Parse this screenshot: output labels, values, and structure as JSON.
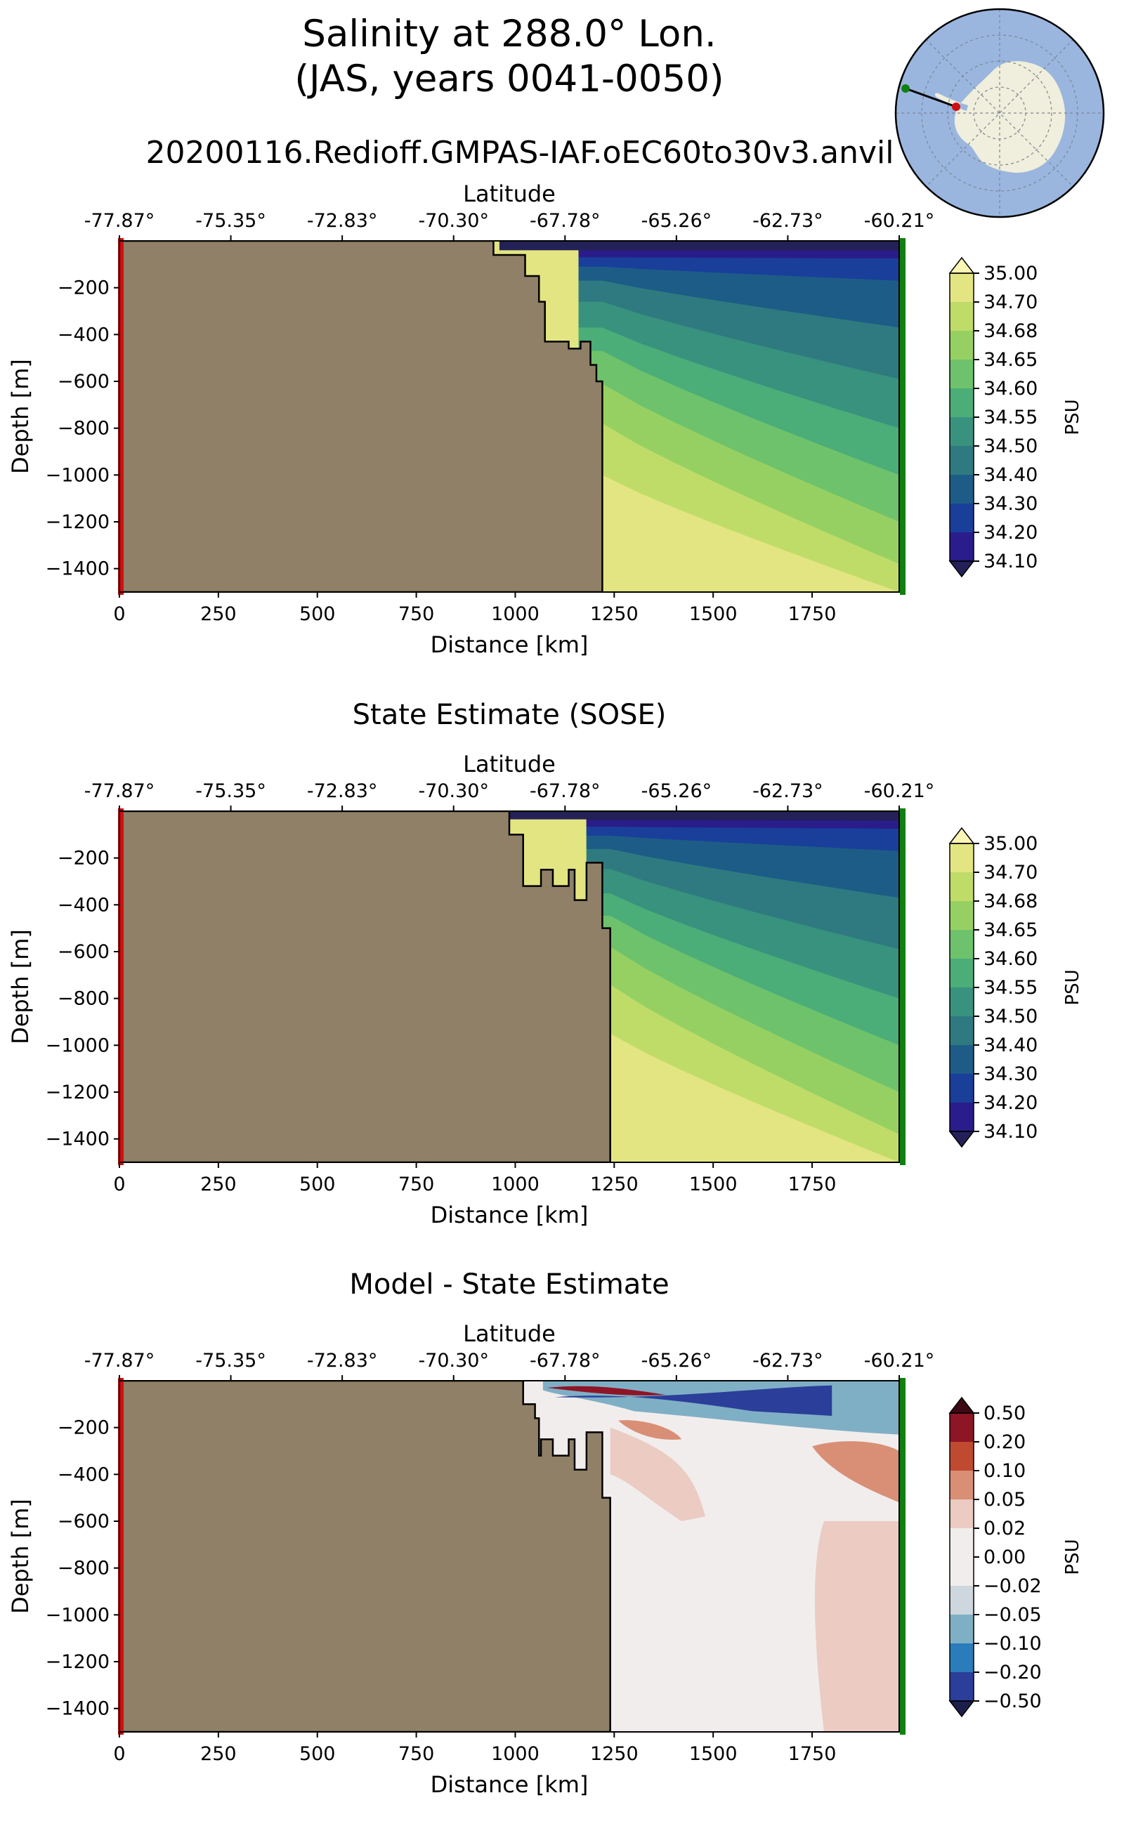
{
  "figure": {
    "title_line1": "Salinity at 288.0° Lon.",
    "title_line2": "(JAS, years 0041-0050)",
    "run_name": "20200116.Redioff.GMPAS-IAF.oEC60to30v3.anvil"
  },
  "colors": {
    "land": "#8f8067",
    "background": "#ffffff",
    "start_marker": "#d01010",
    "end_marker": "#108010",
    "inset_ocean": "#9ab6df",
    "inset_land": "#f0eedc"
  },
  "chart_data": [
    {
      "type": "heatmap",
      "name": "model",
      "title": "",
      "xlabel": "Distance [km]",
      "ylabel": "Depth [m]",
      "top_axis_label": "Latitude",
      "xlim": [
        0,
        1970
      ],
      "ylim": [
        -1500,
        0
      ],
      "x_ticks": [
        "0",
        "250",
        "500",
        "750",
        "1000",
        "1250",
        "1500",
        "1750"
      ],
      "y_ticks": [
        "−200",
        "−400",
        "−600",
        "−800",
        "−1000",
        "−1200",
        "−1400"
      ],
      "latitude_ticks": [
        "-77.87°",
        "-75.35°",
        "-72.83°",
        "-70.30°",
        "-67.78°",
        "-65.26°",
        "-62.73°",
        "-60.21°"
      ],
      "colorbar": {
        "label": "PSU",
        "levels": [
          "35.00",
          "34.70",
          "34.68",
          "34.65",
          "34.60",
          "34.55",
          "34.50",
          "34.40",
          "34.30",
          "34.20",
          "34.10"
        ],
        "colors": [
          "#fbf6b4",
          "#e3e582",
          "#c0dc68",
          "#97d062",
          "#6ec26c",
          "#4bad78",
          "#38927e",
          "#2e7a80",
          "#1d5c87",
          "#193f9a",
          "#2a1c8a",
          "#232157"
        ]
      },
      "bathymetry": [
        [
          0,
          0
        ],
        [
          945,
          0
        ],
        [
          945,
          -60
        ],
        [
          1025,
          -60
        ],
        [
          1025,
          -150
        ],
        [
          1060,
          -150
        ],
        [
          1060,
          -260
        ],
        [
          1075,
          -260
        ],
        [
          1075,
          -430
        ],
        [
          1135,
          -430
        ],
        [
          1135,
          -460
        ],
        [
          1165,
          -460
        ],
        [
          1165,
          -430
        ],
        [
          1190,
          -430
        ],
        [
          1190,
          -530
        ],
        [
          1205,
          -530
        ],
        [
          1205,
          -600
        ],
        [
          1220,
          -600
        ],
        [
          1220,
          -1500
        ]
      ],
      "shelf_break_km": 1220
    },
    {
      "type": "heatmap",
      "name": "sose",
      "title": "State Estimate (SOSE)",
      "xlabel": "Distance [km]",
      "ylabel": "Depth [m]",
      "top_axis_label": "Latitude",
      "xlim": [
        0,
        1970
      ],
      "ylim": [
        -1500,
        0
      ],
      "x_ticks": [
        "0",
        "250",
        "500",
        "750",
        "1000",
        "1250",
        "1500",
        "1750"
      ],
      "y_ticks": [
        "−200",
        "−400",
        "−600",
        "−800",
        "−1000",
        "−1200",
        "−1400"
      ],
      "latitude_ticks": [
        "-77.87°",
        "-75.35°",
        "-72.83°",
        "-70.30°",
        "-67.78°",
        "-65.26°",
        "-62.73°",
        "-60.21°"
      ],
      "colorbar": {
        "label": "PSU",
        "levels": [
          "35.00",
          "34.70",
          "34.68",
          "34.65",
          "34.60",
          "34.55",
          "34.50",
          "34.40",
          "34.30",
          "34.20",
          "34.10"
        ],
        "colors": [
          "#fbf6b4",
          "#e3e582",
          "#c0dc68",
          "#97d062",
          "#6ec26c",
          "#4bad78",
          "#38927e",
          "#2e7a80",
          "#1d5c87",
          "#193f9a",
          "#2a1c8a",
          "#232157"
        ]
      },
      "bathymetry": [
        [
          0,
          0
        ],
        [
          985,
          0
        ],
        [
          985,
          -100
        ],
        [
          1020,
          -100
        ],
        [
          1020,
          -320
        ],
        [
          1065,
          -320
        ],
        [
          1065,
          -250
        ],
        [
          1095,
          -250
        ],
        [
          1095,
          -320
        ],
        [
          1135,
          -320
        ],
        [
          1135,
          -250
        ],
        [
          1150,
          -250
        ],
        [
          1150,
          -380
        ],
        [
          1180,
          -380
        ],
        [
          1180,
          -220
        ],
        [
          1220,
          -220
        ],
        [
          1220,
          -500
        ],
        [
          1240,
          -500
        ],
        [
          1240,
          -1500
        ]
      ],
      "shelf_break_km": 1240
    },
    {
      "type": "heatmap",
      "name": "difference",
      "title": "Model - State Estimate",
      "xlabel": "Distance [km]",
      "ylabel": "Depth [m]",
      "top_axis_label": "Latitude",
      "xlim": [
        0,
        1970
      ],
      "ylim": [
        -1500,
        0
      ],
      "x_ticks": [
        "0",
        "250",
        "500",
        "750",
        "1000",
        "1250",
        "1500",
        "1750"
      ],
      "y_ticks": [
        "−200",
        "−400",
        "−600",
        "−800",
        "−1000",
        "−1200",
        "−1400"
      ],
      "latitude_ticks": [
        "-77.87°",
        "-75.35°",
        "-72.83°",
        "-70.30°",
        "-67.78°",
        "-65.26°",
        "-62.73°",
        "-60.21°"
      ],
      "colorbar": {
        "label": "PSU",
        "levels": [
          "0.50",
          "0.20",
          "0.10",
          "0.05",
          "0.02",
          "0.00",
          "−0.02",
          "−0.05",
          "−0.10",
          "−0.20",
          "−0.50"
        ],
        "colors": [
          "#3d0a14",
          "#8e1525",
          "#bf4a30",
          "#d98f76",
          "#ebcbc2",
          "#f2eded",
          "#f2eded",
          "#cdd7dd",
          "#7fafc5",
          "#2a7cbb",
          "#2b3e99",
          "#1c1f4b"
        ]
      },
      "bathymetry": [
        [
          0,
          0
        ],
        [
          1020,
          0
        ],
        [
          1020,
          -100
        ],
        [
          1050,
          -100
        ],
        [
          1050,
          -160
        ],
        [
          1060,
          -160
        ],
        [
          1060,
          -320
        ],
        [
          1065,
          -320
        ],
        [
          1065,
          -250
        ],
        [
          1095,
          -250
        ],
        [
          1095,
          -320
        ],
        [
          1135,
          -320
        ],
        [
          1135,
          -250
        ],
        [
          1150,
          -250
        ],
        [
          1150,
          -380
        ],
        [
          1180,
          -380
        ],
        [
          1180,
          -220
        ],
        [
          1220,
          -220
        ],
        [
          1220,
          -500
        ],
        [
          1240,
          -500
        ],
        [
          1240,
          -1500
        ]
      ],
      "shelf_break_km": 1240
    }
  ]
}
